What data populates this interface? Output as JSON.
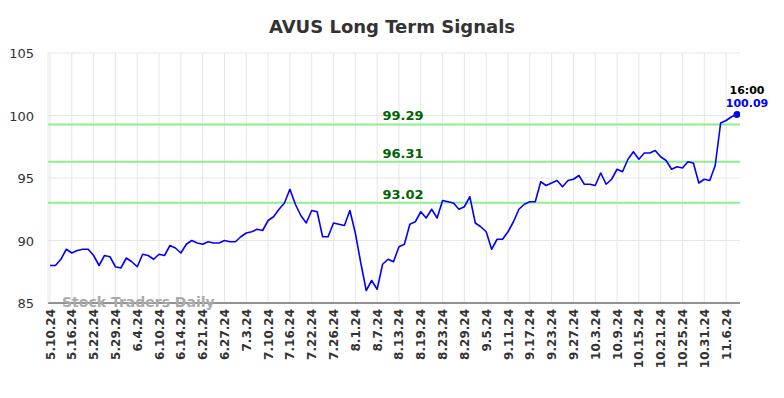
{
  "chart_data": {
    "type": "line",
    "title": "AVUS Long Term Signals",
    "watermark": "Stock Traders Daily",
    "annotations": [
      "16:00"
    ],
    "categories": [
      "5.10.24",
      null,
      null,
      null,
      "5.16.24",
      null,
      null,
      null,
      "5.22.24",
      null,
      null,
      null,
      "5.29.24",
      null,
      null,
      null,
      "6.4.24",
      null,
      null,
      null,
      "6.10.24",
      null,
      null,
      null,
      "6.14.24",
      null,
      null,
      null,
      "6.21.24",
      null,
      null,
      null,
      "6.27.24",
      null,
      null,
      null,
      "7.3.24",
      null,
      null,
      null,
      "7.10.24",
      null,
      null,
      null,
      "7.16.24",
      null,
      null,
      null,
      "7.22.24",
      null,
      null,
      null,
      "7.26.24",
      null,
      null,
      null,
      "8.1.24",
      null,
      null,
      null,
      "8.7.24",
      null,
      null,
      null,
      "8.13.24",
      null,
      null,
      null,
      "8.19.24",
      null,
      null,
      null,
      "8.23.24",
      null,
      null,
      null,
      "8.29.24",
      null,
      null,
      null,
      "9.5.24",
      null,
      null,
      null,
      "9.11.24",
      null,
      null,
      null,
      "9.17.24",
      null,
      null,
      null,
      "9.23.24",
      null,
      null,
      null,
      "9.27.24",
      null,
      null,
      null,
      "10.3.24",
      null,
      null,
      null,
      "10.9.24",
      null,
      null,
      null,
      "10.15.24",
      null,
      null,
      null,
      "10.21.24",
      null,
      null,
      null,
      "10.25.24",
      null,
      null,
      null,
      "10.31.24",
      null,
      null,
      null,
      "11.6.24",
      null,
      null
    ],
    "series": [
      {
        "name": "AVUS",
        "color": "#0000ff",
        "values": [
          88.0,
          88.0,
          88.5,
          89.3,
          89.0,
          89.2,
          89.3,
          89.3,
          88.8,
          88.0,
          88.8,
          88.7,
          87.9,
          87.8,
          88.6,
          88.3,
          87.9,
          88.9,
          88.8,
          88.5,
          88.9,
          88.8,
          89.6,
          89.4,
          89.0,
          89.7,
          90.0,
          89.8,
          89.7,
          89.9,
          89.8,
          89.8,
          90.0,
          89.9,
          89.9,
          90.3,
          90.6,
          90.7,
          90.9,
          90.8,
          91.6,
          91.9,
          92.5,
          93.0,
          94.1,
          92.9,
          92.0,
          91.4,
          92.4,
          92.3,
          90.3,
          90.3,
          91.4,
          91.3,
          91.2,
          92.4,
          90.6,
          88.2,
          86.0,
          86.8,
          86.1,
          88.1,
          88.5,
          88.3,
          89.5,
          89.7,
          91.3,
          91.5,
          92.3,
          91.8,
          92.5,
          91.8,
          93.2,
          93.1,
          93.0,
          92.5,
          92.7,
          93.5,
          91.4,
          91.1,
          90.7,
          89.3,
          90.1,
          90.1,
          90.7,
          91.5,
          92.5,
          92.9,
          93.1,
          93.1,
          94.7,
          94.4,
          94.6,
          94.8,
          94.3,
          94.8,
          94.9,
          95.2,
          94.5,
          94.5,
          94.4,
          95.4,
          94.5,
          94.9,
          95.7,
          95.5,
          96.5,
          97.1,
          96.5,
          97.0,
          97.0,
          97.2,
          96.7,
          96.4,
          95.7,
          95.9,
          95.8,
          96.3,
          96.2,
          94.6,
          94.9,
          94.8,
          96.0,
          99.4,
          99.6,
          99.9,
          100.09
        ]
      }
    ],
    "reference_lines": [
      99.29,
      96.31,
      93.02
    ],
    "ylim": [
      85,
      105
    ],
    "yticks": [
      85,
      90,
      95,
      100,
      105
    ],
    "grid": true
  }
}
